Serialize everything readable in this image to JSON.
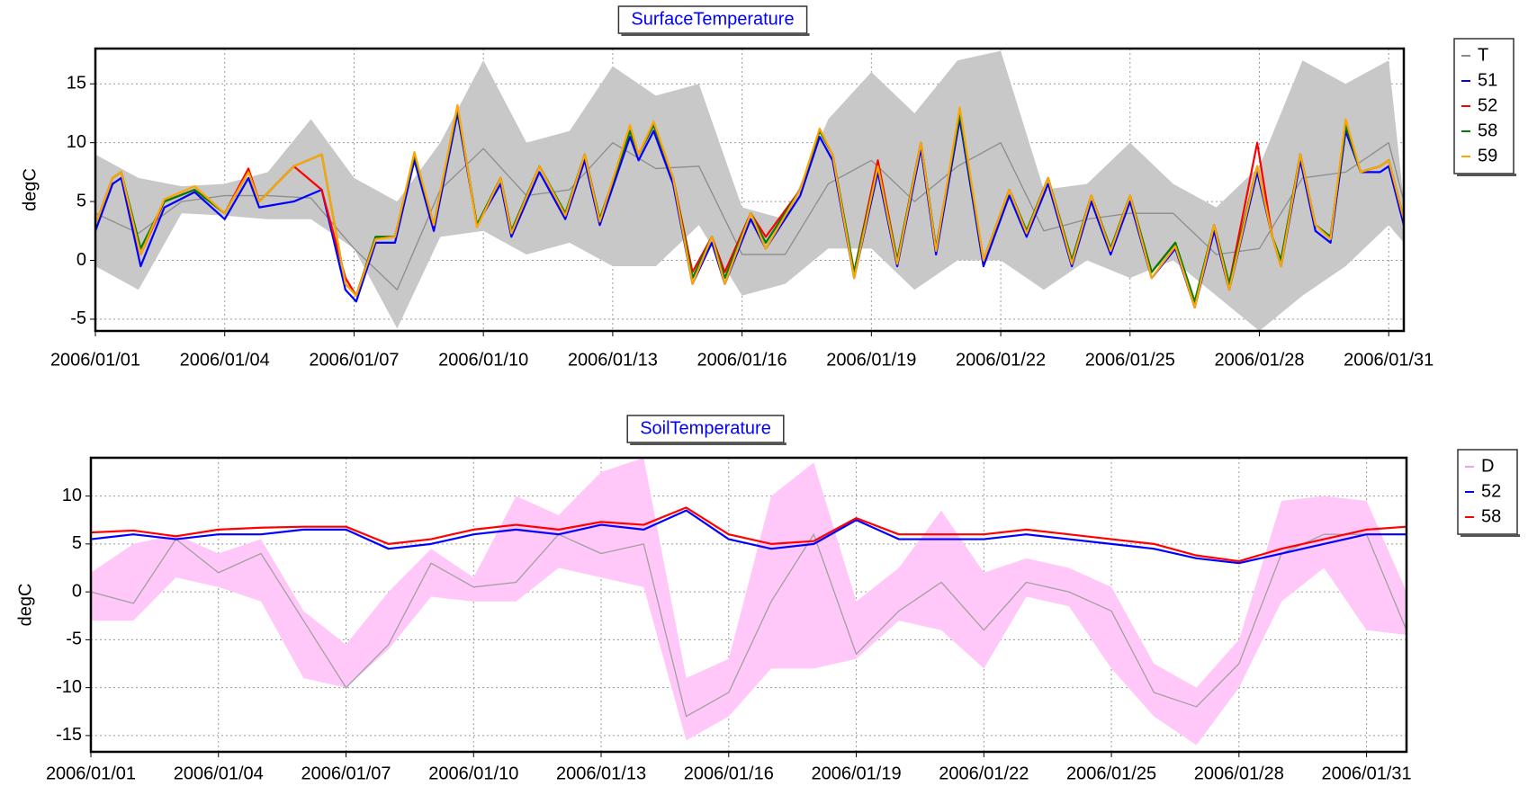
{
  "chart_data": [
    {
      "type": "line",
      "title": "SurfaceTemperature",
      "ylabel": "degC",
      "grid": true,
      "legend": "right",
      "xlim": [
        0,
        30.35
      ],
      "ylim": [
        -6,
        18
      ],
      "xticks": [
        {
          "value": 0,
          "label": "2006/01/01"
        },
        {
          "value": 3,
          "label": "2006/01/04"
        },
        {
          "value": 6,
          "label": "2006/01/07"
        },
        {
          "value": 9,
          "label": "2006/01/10"
        },
        {
          "value": 12,
          "label": "2006/01/13"
        },
        {
          "value": 15,
          "label": "2006/01/16"
        },
        {
          "value": 18,
          "label": "2006/01/19"
        },
        {
          "value": 21,
          "label": "2006/01/22"
        },
        {
          "value": 24,
          "label": "2006/01/25"
        },
        {
          "value": 27,
          "label": "2006/01/28"
        },
        {
          "value": 30,
          "label": "2006/01/31"
        }
      ],
      "yticks": [
        -5,
        0,
        5,
        10,
        15
      ],
      "x": [
        0,
        0.4,
        0.6,
        1.05,
        1.6,
        2.3,
        3,
        3.55,
        3.8,
        4.6,
        5.25,
        5.8,
        6.05,
        6.5,
        6.95,
        7.4,
        7.85,
        8.4,
        8.85,
        9.4,
        9.65,
        10.3,
        10.9,
        11.35,
        11.7,
        12.4,
        12.6,
        12.95,
        13.4,
        13.85,
        14.3,
        14.6,
        15.2,
        15.55,
        16.35,
        16.8,
        17.1,
        17.6,
        18.15,
        18.6,
        19.15,
        19.5,
        20.05,
        20.6,
        21.2,
        21.6,
        22.1,
        22.65,
        23.1,
        23.55,
        24.0,
        24.5,
        25.05,
        25.5,
        25.95,
        26.3,
        26.95,
        27.3,
        27.5,
        27.95,
        28.3,
        28.65,
        29.0,
        29.35,
        29.8,
        30.0,
        30.35
      ],
      "series": [
        {
          "name": "T",
          "color": "#8c8c8c",
          "band_color": "#c8c8c8",
          "x": [
            0,
            1,
            2,
            3,
            4,
            5,
            6,
            7,
            8,
            9,
            10,
            11,
            12,
            13,
            14,
            15,
            16,
            17,
            18,
            19,
            20,
            21,
            22,
            23,
            24,
            25,
            26,
            27,
            28,
            29,
            30,
            30.35
          ],
          "values": [
            4,
            2.3,
            5,
            5.5,
            5.5,
            5.3,
            1,
            -2.5,
            6,
            9.5,
            5.5,
            6,
            10,
            7.8,
            8,
            0.5,
            0.5,
            6.5,
            8.5,
            5,
            8,
            10,
            2.5,
            3.5,
            4,
            4,
            0.5,
            1,
            7,
            7.5,
            10,
            5
          ],
          "lower": [
            -0.5,
            -2.5,
            4,
            3.8,
            3.5,
            3.5,
            1,
            -5.8,
            2,
            2.5,
            0.5,
            1.5,
            -0.5,
            -0.5,
            3,
            -3,
            -2,
            1,
            1,
            -2.5,
            0,
            0,
            -2.5,
            0,
            -1.5,
            0,
            -3,
            -6,
            -3,
            -0.5,
            3,
            1.5
          ],
          "upper": [
            9,
            7,
            6.3,
            6.5,
            7.5,
            12,
            7,
            5,
            10,
            17,
            10,
            11,
            16.5,
            14,
            15,
            4.5,
            3.5,
            12,
            16,
            12.5,
            17,
            17.8,
            6,
            6.5,
            10,
            6.5,
            4.5,
            8,
            17,
            15,
            17,
            5
          ]
        },
        {
          "name": "51",
          "color": "#0000ff",
          "values": [
            2.5,
            6.5,
            7,
            -0.5,
            4.5,
            5.8,
            3.5,
            7,
            4.5,
            5,
            6,
            -2.5,
            -3.5,
            1.5,
            1.5,
            8.5,
            2.5,
            12.5,
            3,
            6.5,
            2,
            7.5,
            3.5,
            8.5,
            3,
            10.5,
            8.5,
            11,
            6.5,
            -2,
            1.5,
            -2,
            3.5,
            1,
            5.5,
            10.5,
            8.5,
            -1.5,
            7.5,
            -0.5,
            9.5,
            0.5,
            12,
            -0.5,
            5.5,
            2,
            6.5,
            -0.5,
            5,
            0.5,
            5,
            -1.5,
            1,
            -4,
            2.5,
            -2.5,
            7.5,
            2,
            -0.5,
            8.5,
            2.5,
            1.5,
            11,
            7.5,
            7.5,
            8,
            3
          ]
        },
        {
          "name": "52",
          "color": "#ff0000",
          "values": [
            3,
            7,
            7.5,
            0.5,
            5,
            6,
            4,
            7.8,
            5,
            8,
            6,
            -1.5,
            -3,
            2,
            2,
            9,
            3,
            13,
            3,
            7,
            2.5,
            8,
            3.8,
            9,
            3.5,
            11,
            9,
            11.5,
            7,
            -1,
            2,
            -1,
            4,
            2,
            6,
            11,
            9,
            -1,
            8.5,
            0,
            10,
            1,
            12.5,
            0,
            6,
            2.5,
            7,
            0,
            5.5,
            1,
            5.5,
            -1,
            1.5,
            -4,
            3,
            -2,
            10,
            2,
            0,
            9,
            3,
            2,
            11.5,
            7.5,
            8,
            8.5,
            3.5
          ]
        },
        {
          "name": "58",
          "color": "#008000",
          "values": [
            3,
            7,
            7.5,
            1,
            5,
            6,
            4,
            7.5,
            5,
            8,
            9,
            -2,
            -3,
            2,
            2,
            9,
            3,
            13,
            3,
            7,
            2.5,
            8,
            4,
            9,
            3.5,
            11,
            9,
            11.5,
            7,
            -1.5,
            2,
            -1.5,
            4,
            1.5,
            6,
            11,
            9,
            -1,
            8,
            0,
            10,
            1,
            12.5,
            0,
            6,
            2.5,
            7,
            0,
            5.5,
            1,
            5.5,
            -1,
            1.5,
            -3.5,
            3,
            -2,
            8,
            2,
            0,
            9,
            3,
            2,
            11.5,
            7.5,
            8,
            8.5,
            3.5
          ]
        },
        {
          "name": "59",
          "color": "#ffa500",
          "values": [
            3,
            7,
            7.5,
            0.5,
            5.2,
            6.3,
            4,
            7.5,
            5,
            8,
            9,
            -2,
            -3,
            1.8,
            2,
            9.2,
            3,
            13.2,
            2.8,
            7,
            2.3,
            8,
            3.8,
            9,
            3.3,
            11.5,
            9,
            11.8,
            7,
            -2,
            2,
            -2,
            4,
            1,
            6,
            11.2,
            9,
            -1.5,
            8,
            -0.3,
            10,
            0.8,
            13,
            0,
            6,
            2.3,
            7,
            -0.3,
            5.5,
            0.8,
            5.5,
            -1.5,
            1.2,
            -4,
            3,
            -2.5,
            8,
            2,
            -0.5,
            9,
            3,
            1.8,
            12,
            7.5,
            8,
            8.5,
            3.5
          ]
        }
      ]
    },
    {
      "type": "line",
      "title": "SoilTemperature",
      "ylabel": "degC",
      "grid": true,
      "legend": "right",
      "xlim": [
        0,
        30.94
      ],
      "ylim": [
        -16.7,
        14
      ],
      "xticks": [
        {
          "value": 0,
          "label": "2006/01/01"
        },
        {
          "value": 3,
          "label": "2006/01/04"
        },
        {
          "value": 6,
          "label": "2006/01/07"
        },
        {
          "value": 9,
          "label": "2006/01/10"
        },
        {
          "value": 12,
          "label": "2006/01/13"
        },
        {
          "value": 15,
          "label": "2006/01/16"
        },
        {
          "value": 18,
          "label": "2006/01/19"
        },
        {
          "value": 21,
          "label": "2006/01/22"
        },
        {
          "value": 24,
          "label": "2006/01/25"
        },
        {
          "value": 27,
          "label": "2006/01/28"
        },
        {
          "value": 30,
          "label": "2006/01/31"
        }
      ],
      "yticks": [
        -15,
        -10,
        -5,
        0,
        5,
        10
      ],
      "x": [
        0,
        1,
        2,
        3,
        4,
        5,
        6,
        7,
        8,
        9,
        10,
        11,
        12,
        13,
        14,
        15,
        16,
        17,
        18,
        19,
        20,
        21,
        22,
        23,
        24,
        25,
        26,
        27,
        28,
        29,
        30,
        30.94
      ],
      "series": [
        {
          "name": "D",
          "color": "#f0a0e8",
          "line_color": "#a0a0a0",
          "band_color": "#ffc8f8",
          "values": [
            0,
            -1.2,
            5.5,
            2,
            4,
            -3,
            -10,
            -5.5,
            3,
            0.5,
            1,
            6,
            4,
            5,
            -13,
            -10.5,
            -1,
            6,
            -6.5,
            -2,
            1,
            -4,
            1,
            0,
            -2,
            -10.5,
            -12,
            -7.5,
            4,
            6,
            6,
            -4
          ],
          "lower": [
            -3,
            -3,
            1.5,
            0.5,
            -1,
            -9,
            -10,
            -6,
            -0.5,
            -1,
            -1,
            2.5,
            1.5,
            0.5,
            -15.5,
            -13,
            -8,
            -8,
            -7,
            -3,
            -4,
            -8,
            -0.5,
            -1.5,
            -8,
            -13,
            -16,
            -10,
            -1,
            2.5,
            -4,
            -4.5
          ],
          "upper": [
            2,
            5,
            6,
            4,
            5.5,
            -2,
            -5.5,
            0,
            4.5,
            1.5,
            10,
            8,
            12.5,
            14,
            -9,
            -7,
            10,
            13.5,
            -1,
            2.5,
            8.5,
            2,
            3.5,
            2.5,
            0.5,
            -7.5,
            -10,
            -5,
            9.5,
            10,
            9.5,
            0
          ]
        },
        {
          "name": "52",
          "color": "#0000ff",
          "values": [
            5.5,
            6,
            5.5,
            6,
            6,
            6.5,
            6.5,
            4.5,
            5,
            6,
            6.5,
            6,
            7,
            6.5,
            8.5,
            5.5,
            4.5,
            5,
            7.5,
            5.5,
            5.5,
            5.5,
            6,
            5.5,
            5,
            4.5,
            3.5,
            3,
            4,
            5,
            6,
            6
          ]
        },
        {
          "name": "58",
          "color": "#ff0000",
          "values": [
            6.2,
            6.4,
            5.8,
            6.5,
            6.7,
            6.8,
            6.8,
            5,
            5.5,
            6.5,
            7,
            6.5,
            7.3,
            7,
            8.8,
            6,
            5,
            5.3,
            7.7,
            6,
            6,
            6,
            6.5,
            6,
            5.5,
            5,
            3.8,
            3.2,
            4.5,
            5.5,
            6.5,
            6.8
          ]
        }
      ]
    }
  ]
}
